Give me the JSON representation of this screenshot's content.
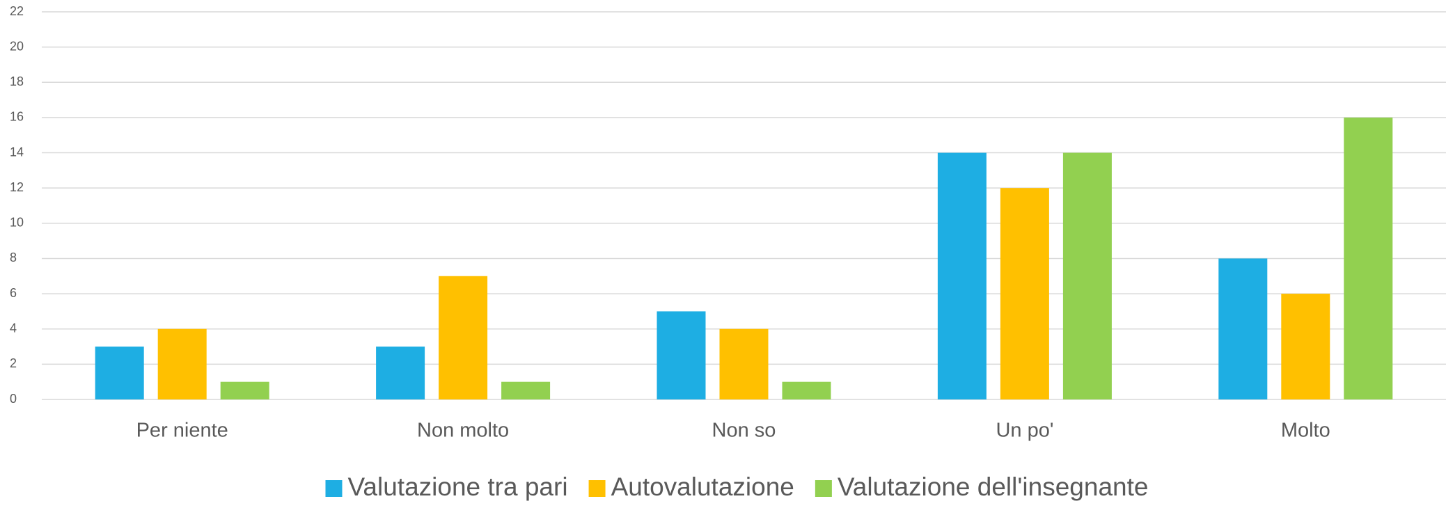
{
  "chart_data": {
    "type": "bar",
    "categories": [
      "Per niente",
      "Non molto",
      "Non so",
      "Un po'",
      "Molto"
    ],
    "series": [
      {
        "name": "Valutazione tra pari",
        "color": "#1eaee3",
        "values": [
          3,
          3,
          5,
          14,
          8
        ]
      },
      {
        "name": "Autovalutazione",
        "color": "#ffc000",
        "values": [
          4,
          7,
          4,
          12,
          6
        ]
      },
      {
        "name": "Valutazione dell'insegnante",
        "color": "#92d050",
        "values": [
          1,
          1,
          1,
          14,
          16
        ]
      }
    ],
    "ylim": [
      0,
      22
    ],
    "yticks": [
      0,
      2,
      4,
      6,
      8,
      10,
      12,
      14,
      16,
      18,
      20,
      22
    ],
    "grid": true,
    "legend": "bottom"
  }
}
